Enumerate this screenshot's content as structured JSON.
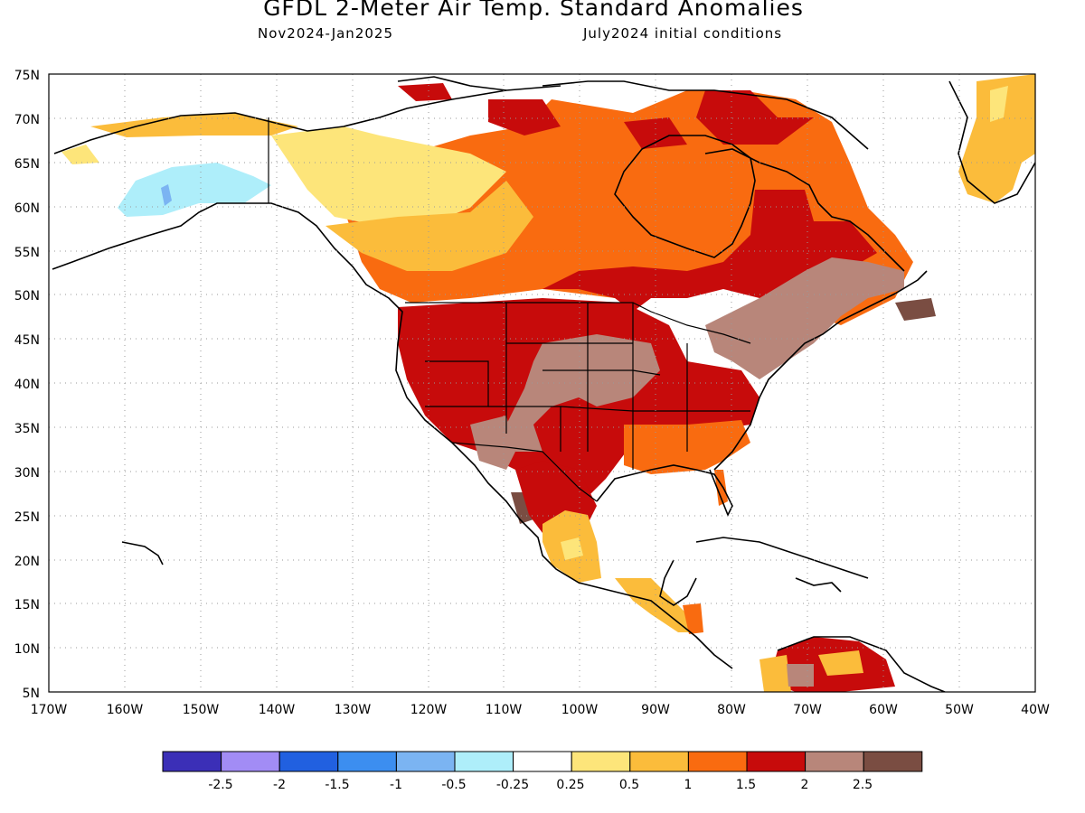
{
  "title": "GFDL 2-Meter Air Temp. Standard Anomalies",
  "subtitle_left": "Nov2024-Jan2025",
  "subtitle_right": "July2024 initial conditions",
  "lat_labels": [
    "75N",
    "70N",
    "65N",
    "60N",
    "55N",
    "50N",
    "45N",
    "40N",
    "35N",
    "30N",
    "25N",
    "20N",
    "15N",
    "10N",
    "5N"
  ],
  "lon_labels": [
    "170W",
    "160W",
    "150W",
    "140W",
    "130W",
    "120W",
    "110W",
    "100W",
    "90W",
    "80W",
    "70W",
    "60W",
    "50W",
    "40W"
  ],
  "legend": {
    "colors": [
      "#3b2fb7",
      "#a28cf5",
      "#2160e0",
      "#3c8ef0",
      "#7bb4f2",
      "#aeeefa",
      "#ffffff",
      "#fde57a",
      "#fbbc3b",
      "#f96b10",
      "#c70b0b",
      "#b8867a",
      "#7a4d42"
    ],
    "labels": [
      "-2.5",
      "-2",
      "-1.5",
      "-1",
      "-0.5",
      "-0.25",
      "0.25",
      "0.5",
      "1",
      "1.5",
      "2",
      "2.5"
    ]
  },
  "regions": [
    {
      "name": "alaska-anomaly",
      "category": "-0.5 to -0.25",
      "color": "#aeeefa"
    },
    {
      "name": "northwest-canada-anomaly",
      "category": "0.25 to 0.5",
      "color": "#fde57a"
    },
    {
      "name": "canada-anomaly",
      "category": "1 to 1.5",
      "color": "#f96b10"
    },
    {
      "name": "western-us-anomaly",
      "category": "1.5 to 2",
      "color": "#c70b0b"
    },
    {
      "name": "central-eastern-us-anomaly",
      "category": "2 to 2.5",
      "color": "#b8867a"
    },
    {
      "name": "southeast-us-anomaly",
      "category": "1 to 1.5",
      "color": "#f96b10"
    },
    {
      "name": "mexico-anomaly",
      "category": "0.5 to 1",
      "color": "#fbbc3b"
    },
    {
      "name": "greenland-anomaly",
      "category": "0.5 to 1",
      "color": "#fbbc3b"
    },
    {
      "name": "south-america-anomaly",
      "category": "1.5 to 2",
      "color": "#c70b0b"
    }
  ]
}
